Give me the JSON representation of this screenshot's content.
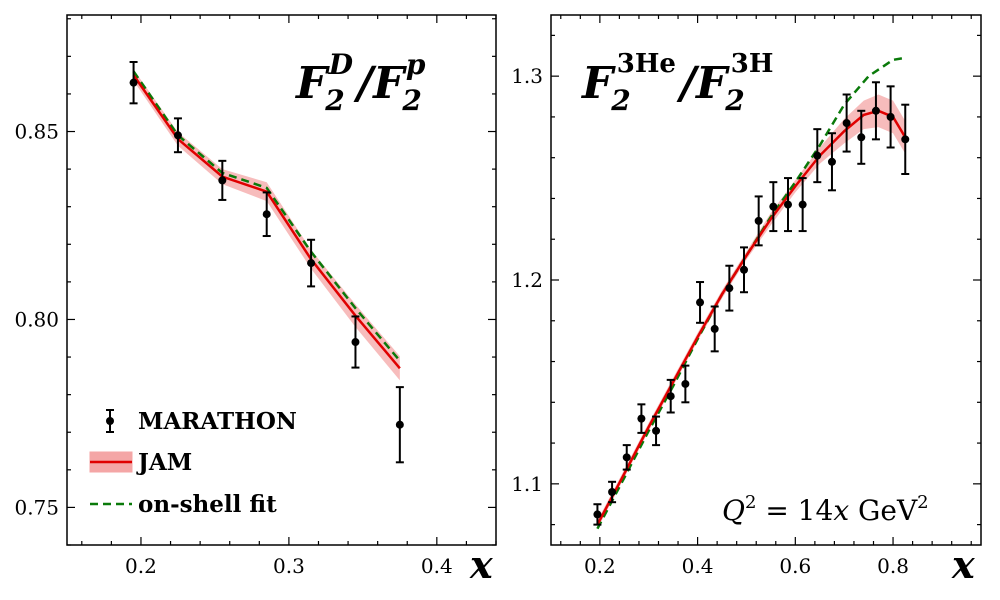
{
  "colors": {
    "data": "#000000",
    "jam_line": "#e00000",
    "jam_band": "#f4a6a6",
    "onshell": "#0a7a0a"
  },
  "chart_data": [
    {
      "type": "line",
      "title": "F2D/F2p",
      "title_parts": {
        "base1": "F",
        "sub1": "2",
        "sup1": "D",
        "slash": "/",
        "base2": "F",
        "sub2": "2",
        "sup2": "p"
      },
      "xlabel": "x",
      "ylabel": "",
      "xlim": [
        0.15,
        0.44
      ],
      "ylim": [
        0.74,
        0.881
      ],
      "xticks": [
        0.2,
        0.3,
        0.4
      ],
      "xtick_labels": [
        "0.2",
        "0.3",
        "0.4"
      ],
      "yticks": [
        0.75,
        0.8,
        0.85
      ],
      "ytick_labels": [
        "0.75",
        "0.80",
        "0.85"
      ],
      "legend_placement": "lower-left",
      "legend": [
        {
          "label": "MARATHON",
          "kind": "errorbar"
        },
        {
          "label": "JAM",
          "kind": "band-line"
        },
        {
          "label": "on-shell fit",
          "kind": "dashed"
        }
      ],
      "series": [
        {
          "name": "MARATHON",
          "x": [
            0.195,
            0.225,
            0.255,
            0.285,
            0.315,
            0.345,
            0.375
          ],
          "y": [
            0.863,
            0.849,
            0.837,
            0.828,
            0.815,
            0.794,
            0.772
          ],
          "err": [
            0.0055,
            0.0045,
            0.0052,
            0.0058,
            0.0062,
            0.0068,
            0.01
          ]
        },
        {
          "name": "JAM",
          "x": [
            0.195,
            0.225,
            0.255,
            0.285,
            0.315,
            0.345,
            0.375
          ],
          "y": [
            0.865,
            0.848,
            0.838,
            0.834,
            0.816,
            0.801,
            0.787
          ],
          "band": [
            0.0015,
            0.0018,
            0.002,
            0.0025,
            0.0025,
            0.003,
            0.0032
          ]
        },
        {
          "name": "on-shell fit",
          "x": [
            0.195,
            0.225,
            0.255,
            0.285,
            0.315,
            0.345,
            0.375
          ],
          "y": [
            0.866,
            0.849,
            0.839,
            0.835,
            0.818,
            0.803,
            0.789
          ]
        }
      ]
    },
    {
      "type": "line",
      "title": "F2 3He/F2 3H",
      "title_parts": {
        "base1": "F",
        "sub1": "2",
        "sup1": "3He",
        "slash": "/",
        "base2": "F",
        "sub2": "2",
        "sup2": "3H"
      },
      "xlabel": "x",
      "ylabel": "",
      "annotation": {
        "lhs": "Q",
        "exp": "2",
        "mid": " = 14",
        "var": "x",
        "unit": " GeV",
        "unit_exp": "2"
      },
      "xlim": [
        0.1,
        0.98
      ],
      "ylim": [
        1.07,
        1.33
      ],
      "xticks": [
        0.2,
        0.4,
        0.6,
        0.8
      ],
      "xtick_labels": [
        "0.2",
        "0.4",
        "0.6",
        "0.8"
      ],
      "yticks": [
        1.1,
        1.2,
        1.3
      ],
      "ytick_labels": [
        "1.1",
        "1.2",
        "1.3"
      ],
      "series": [
        {
          "name": "MARATHON",
          "x": [
            0.195,
            0.225,
            0.255,
            0.285,
            0.315,
            0.345,
            0.375,
            0.405,
            0.435,
            0.465,
            0.495,
            0.525,
            0.555,
            0.585,
            0.615,
            0.645,
            0.675,
            0.705,
            0.735,
            0.765,
            0.795,
            0.825
          ],
          "y": [
            1.085,
            1.096,
            1.113,
            1.132,
            1.126,
            1.143,
            1.149,
            1.189,
            1.176,
            1.196,
            1.205,
            1.229,
            1.236,
            1.237,
            1.237,
            1.261,
            1.258,
            1.277,
            1.27,
            1.283,
            1.28,
            1.269
          ],
          "err": [
            0.005,
            0.005,
            0.006,
            0.007,
            0.007,
            0.008,
            0.009,
            0.01,
            0.011,
            0.011,
            0.011,
            0.012,
            0.012,
            0.013,
            0.013,
            0.013,
            0.014,
            0.014,
            0.013,
            0.014,
            0.015,
            0.017
          ]
        },
        {
          "name": "JAM",
          "x": [
            0.195,
            0.25,
            0.3,
            0.35,
            0.4,
            0.45,
            0.5,
            0.55,
            0.6,
            0.65,
            0.7,
            0.74,
            0.77,
            0.8,
            0.825
          ],
          "y": [
            1.08,
            1.105,
            1.128,
            1.15,
            1.172,
            1.193,
            1.212,
            1.23,
            1.246,
            1.261,
            1.273,
            1.281,
            1.283,
            1.28,
            1.27
          ],
          "band": [
            0.002,
            0.002,
            0.002,
            0.002,
            0.002,
            0.002,
            0.002,
            0.003,
            0.003,
            0.004,
            0.006,
            0.007,
            0.008,
            0.008,
            0.008
          ]
        },
        {
          "name": "on-shell fit",
          "x": [
            0.195,
            0.25,
            0.3,
            0.35,
            0.4,
            0.45,
            0.5,
            0.55,
            0.6,
            0.65,
            0.7,
            0.75,
            0.8,
            0.825
          ],
          "y": [
            1.078,
            1.103,
            1.126,
            1.148,
            1.171,
            1.193,
            1.212,
            1.231,
            1.248,
            1.266,
            1.286,
            1.3,
            1.308,
            1.309
          ]
        }
      ]
    }
  ]
}
